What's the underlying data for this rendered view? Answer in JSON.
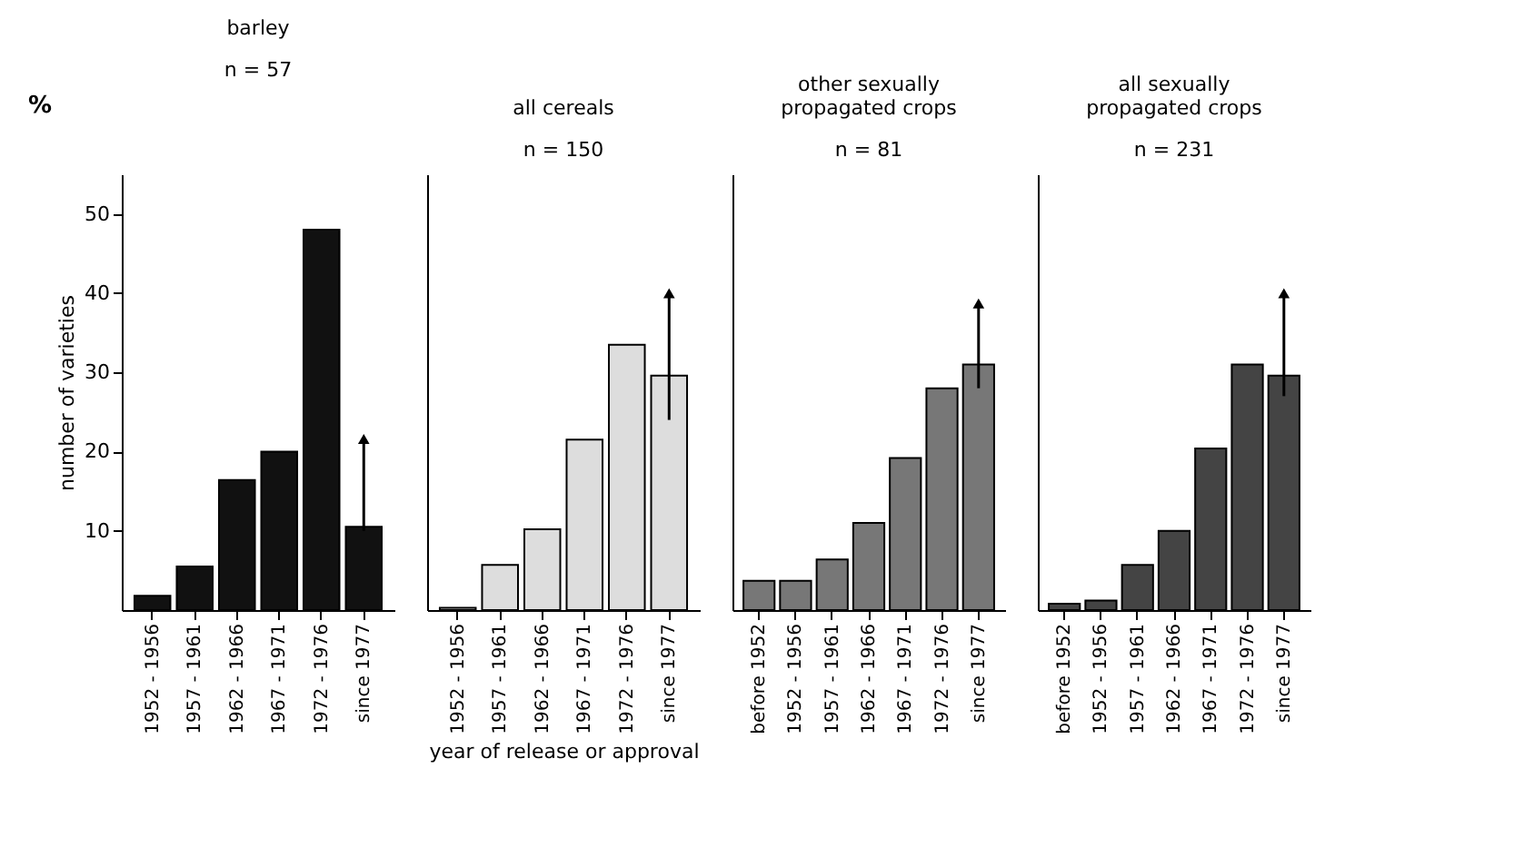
{
  "chart_data": [
    {
      "type": "bar",
      "title": "barley",
      "subtitle": "n = 57",
      "ylabel": "number of varieties",
      "annotations": [
        "%"
      ],
      "categories": [
        "1952 - 1956",
        "1957 - 1961",
        "1962 - 1966",
        "1967 - 1971",
        "1972 - 1976",
        "since 1977"
      ],
      "ylim": [
        0,
        55
      ],
      "yticks": [
        10,
        20,
        30,
        40,
        50
      ],
      "series": [
        {
          "color": "#111111",
          "values": [
            1.8,
            5.5,
            16.4,
            20,
            48,
            10.5
          ],
          "errors": [
            null,
            null,
            null,
            null,
            null,
            [
              10,
              21.6
            ]
          ]
        }
      ]
    },
    {
      "type": "bar",
      "title": "all cereals",
      "subtitle": "n = 150",
      "xlabel": "year of release or approval",
      "categories": [
        "1952 - 1956",
        "1957 - 1961",
        "1962 - 1966",
        "1967 - 1971",
        "1972 - 1976",
        "since 1977"
      ],
      "ylim": [
        0,
        55
      ],
      "yticks": [
        10,
        20,
        30,
        40,
        50
      ],
      "tick_labels": "x",
      "series": [
        {
          "color": "#dddddd",
          "values": [
            0.3,
            5.7,
            10.2,
            21.5,
            33.5,
            29.6
          ],
          "errors": [
            null,
            null,
            null,
            null,
            null,
            [
              24,
              40
            ]
          ]
        }
      ]
    },
    {
      "type": "bar",
      "title": "other sexually propagated crops",
      "subtitle": "n = 81",
      "categories": [
        "before 1952",
        "1952 - 1956",
        "1957 - 1961",
        "1962 - 1966",
        "1967 - 1971",
        "1972 - 1976",
        "since 1977"
      ],
      "ylim": [
        0,
        55
      ],
      "yticks": [
        10,
        20,
        30,
        40,
        50
      ],
      "tick_labels": "x",
      "series": [
        {
          "color": "#777777",
          "values": [
            3.7,
            3.7,
            6.4,
            11,
            19.2,
            28,
            31
          ],
          "errors": [
            null,
            null,
            null,
            null,
            null,
            null,
            [
              28,
              38.7
            ]
          ]
        }
      ]
    },
    {
      "type": "bar",
      "title": "all sexually propagated crops",
      "subtitle": "n = 231",
      "categories": [
        "before 1952",
        "1952 - 1956",
        "1957 - 1961",
        "1962 - 1966",
        "1967 - 1971",
        "1972 - 1976",
        "since 1977"
      ],
      "ylim": [
        0,
        55
      ],
      "yticks": [
        10,
        20,
        30,
        40,
        50
      ],
      "tick_labels": "x",
      "series": [
        {
          "color": "#444444",
          "values": [
            0.8,
            1.2,
            5.7,
            10,
            20.4,
            31,
            29.6
          ],
          "errors": [
            null,
            null,
            null,
            null,
            null,
            null,
            [
              27,
              40
            ]
          ]
        }
      ]
    }
  ]
}
